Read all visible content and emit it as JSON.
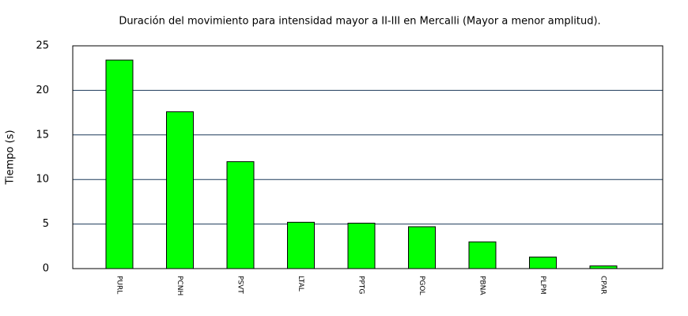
{
  "chart_data": {
    "type": "bar",
    "title": "Duración del movimiento para intensidad mayor a II-III en Mercalli (Mayor a menor amplitud).",
    "y_label": "Tiempo (s)",
    "categories": [
      "PURL",
      "PCNH",
      "PSVT",
      "LTAL",
      "PPTG",
      "PGOL",
      "PBNA",
      "PLPM",
      "CPAR"
    ],
    "values": [
      23.4,
      17.6,
      12.0,
      5.2,
      5.1,
      4.7,
      3.0,
      1.3,
      0.3
    ],
    "color": "#00ff00",
    "ylim": [
      0,
      25
    ],
    "yticks": [
      0,
      5,
      10,
      15,
      20,
      25
    ],
    "grid": true
  }
}
